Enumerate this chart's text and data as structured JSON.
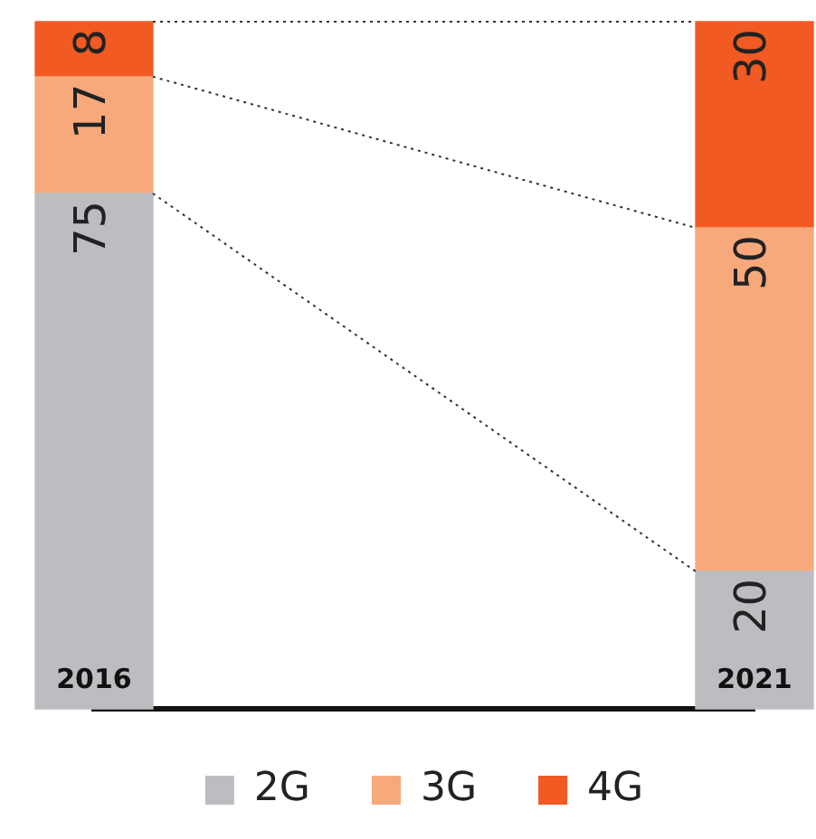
{
  "chart_data": {
    "type": "bar",
    "stacked": true,
    "categories": [
      "2016",
      "2021"
    ],
    "series": [
      {
        "name": "2G",
        "color": "#bcbdc1",
        "values": [
          75,
          20
        ]
      },
      {
        "name": "3G",
        "color": "#f7a97c",
        "values": [
          17,
          50
        ]
      },
      {
        "name": "4G",
        "color": "#f15a22",
        "values": [
          8,
          30
        ]
      }
    ],
    "data_labels": true,
    "legend": "bottom",
    "grid": false
  }
}
